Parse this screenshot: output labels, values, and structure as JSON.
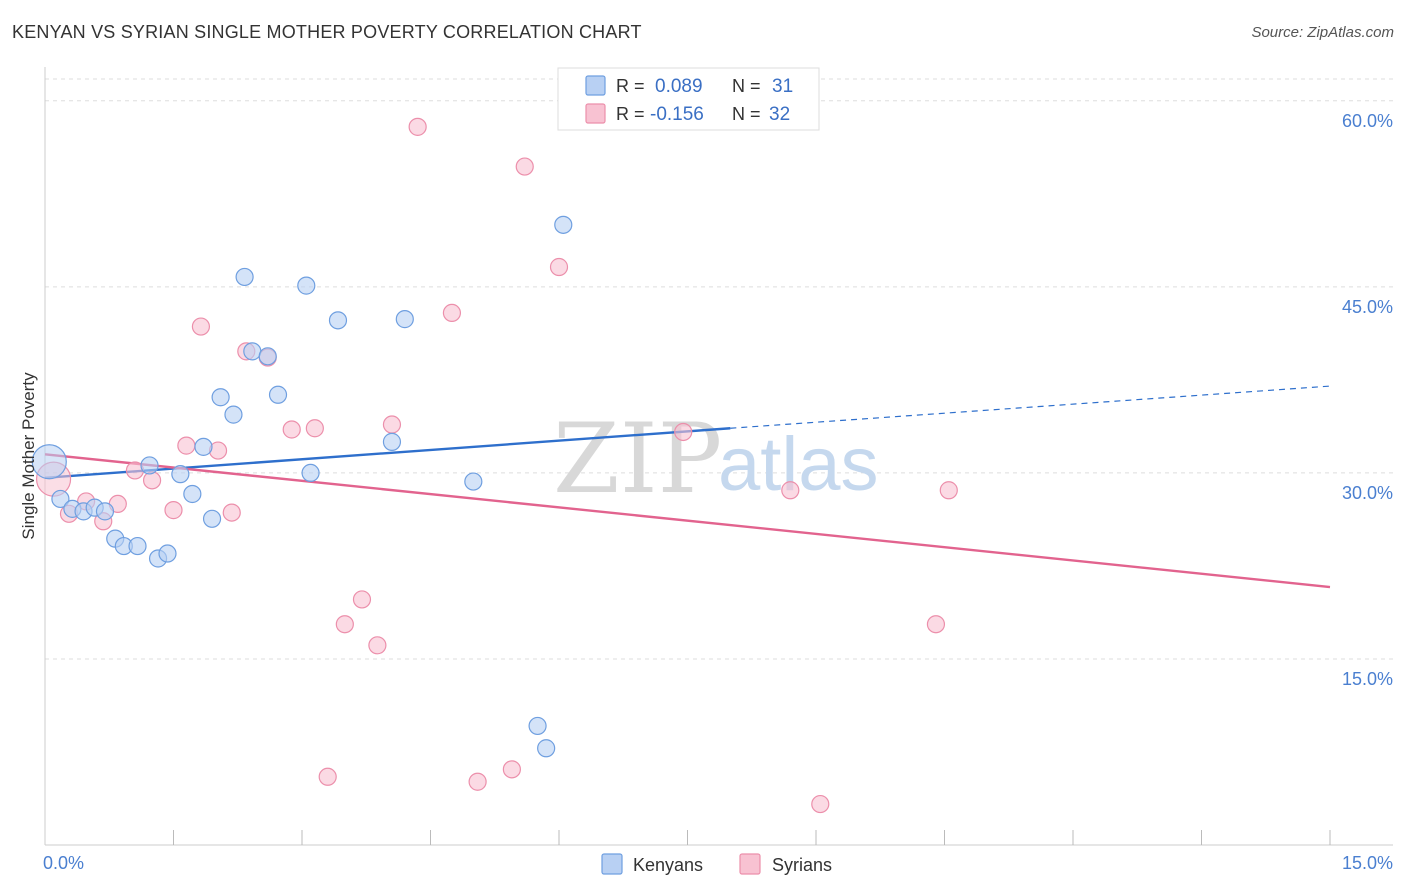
{
  "header": {
    "title": "KENYAN VS SYRIAN SINGLE MOTHER POVERTY CORRELATION CHART",
    "source": "Source: ZipAtlas.com"
  },
  "watermark": {
    "zip": "ZIP",
    "atlas": "atlas"
  },
  "colors": {
    "kenyan_fill": "#b8d0f3",
    "kenyan_stroke": "#6f9fe0",
    "kenyan_line": "#2e6fcc",
    "syrian_fill": "#f8c2d2",
    "syrian_stroke": "#ec8fab",
    "syrian_line": "#e2638e",
    "grid": "#dddddd",
    "tick_text": "#4a7fd0"
  },
  "chart_data": {
    "type": "scatter",
    "title": "KENYAN VS SYRIAN SINGLE MOTHER POVERTY CORRELATION CHART",
    "xlabel": "",
    "ylabel": "Single Mother Poverty",
    "xlim": [
      0,
      15
    ],
    "ylim": [
      0,
      62
    ],
    "x_tick_labels": {
      "min": "0.0%",
      "max": "15.0%"
    },
    "x_minor_ticks": [
      1.5,
      3.0,
      4.5,
      6.0,
      7.5,
      9.0,
      10.5,
      12.0,
      13.5,
      15.0
    ],
    "y_ticks": [
      {
        "value": 15,
        "label": "15.0%"
      },
      {
        "value": 30,
        "label": "30.0%"
      },
      {
        "value": 45,
        "label": "45.0%"
      },
      {
        "value": 60,
        "label": "60.0%"
      }
    ],
    "grid": true,
    "legend_position": "bottom-center",
    "stats_box": [
      {
        "r_label": "R =",
        "r_value": "0.089",
        "n_label": "N =",
        "n_value": "31"
      },
      {
        "r_label": "R =",
        "r_value": "-0.156",
        "n_label": "N =",
        "n_value": "32"
      }
    ],
    "series": [
      {
        "name": "Kenyans",
        "r": 0.089,
        "n": 31,
        "trend": {
          "x0": 0,
          "y0": 29.6,
          "x1": 8.0,
          "y1": 33.6,
          "x_dash_end": 15,
          "y_dash_end": 37.0
        },
        "points": [
          {
            "x": 0.05,
            "y": 30.9,
            "big": true
          },
          {
            "x": 0.18,
            "y": 27.9
          },
          {
            "x": 0.32,
            "y": 27.1
          },
          {
            "x": 0.45,
            "y": 26.9
          },
          {
            "x": 0.58,
            "y": 27.2
          },
          {
            "x": 0.7,
            "y": 26.9
          },
          {
            "x": 0.82,
            "y": 24.7
          },
          {
            "x": 0.92,
            "y": 24.1
          },
          {
            "x": 1.08,
            "y": 24.1
          },
          {
            "x": 1.22,
            "y": 30.6
          },
          {
            "x": 1.32,
            "y": 23.1
          },
          {
            "x": 1.43,
            "y": 23.5
          },
          {
            "x": 1.58,
            "y": 29.9
          },
          {
            "x": 1.72,
            "y": 28.3
          },
          {
            "x": 1.85,
            "y": 32.1
          },
          {
            "x": 1.95,
            "y": 26.3
          },
          {
            "x": 2.05,
            "y": 36.1
          },
          {
            "x": 2.2,
            "y": 34.7
          },
          {
            "x": 2.33,
            "y": 45.8
          },
          {
            "x": 2.42,
            "y": 39.8
          },
          {
            "x": 2.6,
            "y": 39.4
          },
          {
            "x": 2.72,
            "y": 36.3
          },
          {
            "x": 3.05,
            "y": 45.1
          },
          {
            "x": 3.1,
            "y": 30.0
          },
          {
            "x": 3.42,
            "y": 42.3
          },
          {
            "x": 4.05,
            "y": 32.5
          },
          {
            "x": 4.2,
            "y": 42.4
          },
          {
            "x": 5.0,
            "y": 29.3
          },
          {
            "x": 5.75,
            "y": 9.6
          },
          {
            "x": 5.85,
            "y": 7.8
          },
          {
            "x": 6.05,
            "y": 50.0
          }
        ]
      },
      {
        "name": "Syrians",
        "r": -0.156,
        "n": 32,
        "trend": {
          "x0": 0,
          "y0": 31.5,
          "x1": 15,
          "y1": 20.8
        },
        "points": [
          {
            "x": 0.1,
            "y": 29.5,
            "big": true
          },
          {
            "x": 0.28,
            "y": 26.7
          },
          {
            "x": 0.48,
            "y": 27.7
          },
          {
            "x": 0.68,
            "y": 26.1
          },
          {
            "x": 0.85,
            "y": 27.5
          },
          {
            "x": 1.05,
            "y": 30.2
          },
          {
            "x": 1.25,
            "y": 29.4
          },
          {
            "x": 1.5,
            "y": 27.0
          },
          {
            "x": 1.65,
            "y": 32.2
          },
          {
            "x": 1.82,
            "y": 41.8
          },
          {
            "x": 2.02,
            "y": 31.8
          },
          {
            "x": 2.18,
            "y": 26.8
          },
          {
            "x": 2.35,
            "y": 39.8
          },
          {
            "x": 2.6,
            "y": 39.3
          },
          {
            "x": 2.88,
            "y": 33.5
          },
          {
            "x": 3.15,
            "y": 33.6
          },
          {
            "x": 3.3,
            "y": 5.5
          },
          {
            "x": 3.5,
            "y": 17.8
          },
          {
            "x": 3.7,
            "y": 19.8
          },
          {
            "x": 3.88,
            "y": 16.1
          },
          {
            "x": 4.05,
            "y": 33.9
          },
          {
            "x": 4.35,
            "y": 57.9
          },
          {
            "x": 4.75,
            "y": 42.9
          },
          {
            "x": 5.05,
            "y": 5.1
          },
          {
            "x": 5.45,
            "y": 6.1
          },
          {
            "x": 5.6,
            "y": 54.7
          },
          {
            "x": 6.0,
            "y": 46.6
          },
          {
            "x": 7.45,
            "y": 33.3
          },
          {
            "x": 8.7,
            "y": 28.6
          },
          {
            "x": 9.05,
            "y": 3.3
          },
          {
            "x": 10.4,
            "y": 17.8
          },
          {
            "x": 10.55,
            "y": 28.6
          }
        ]
      }
    ]
  }
}
